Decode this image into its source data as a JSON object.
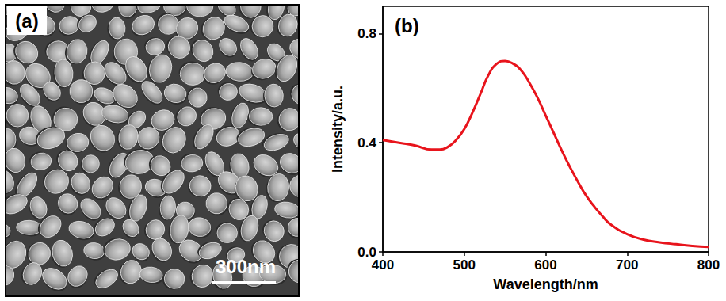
{
  "image_panel": {
    "panel_label": "(a)",
    "scale_bar": "300nm"
  },
  "chart_data": {
    "type": "line",
    "panel_label": "(b)",
    "x_label": "Wavelength/nm",
    "y_label": "Intensity/a.u.",
    "x": [
      400,
      420,
      440,
      460,
      470,
      480,
      490,
      500,
      510,
      520,
      530,
      540,
      550,
      560,
      570,
      580,
      590,
      600,
      610,
      620,
      630,
      640,
      650,
      660,
      670,
      680,
      700,
      720,
      740,
      760,
      780,
      800
    ],
    "series": [
      {
        "color": "#e8141c",
        "values": [
          0.41,
          0.4,
          0.39,
          0.375,
          0.375,
          0.385,
          0.41,
          0.45,
          0.51,
          0.58,
          0.65,
          0.69,
          0.7,
          0.69,
          0.665,
          0.62,
          0.565,
          0.5,
          0.435,
          0.37,
          0.31,
          0.255,
          0.205,
          0.165,
          0.13,
          0.1,
          0.065,
          0.045,
          0.035,
          0.028,
          0.022,
          0.018
        ]
      }
    ],
    "xlim": [
      400,
      800
    ],
    "xticks": [
      400,
      500,
      600,
      700,
      800
    ],
    "ylim": [
      0,
      0.9
    ],
    "yticks": [
      {
        "value": 0,
        "label": "0.0"
      },
      0.4,
      0.8
    ],
    "grid": false
  }
}
